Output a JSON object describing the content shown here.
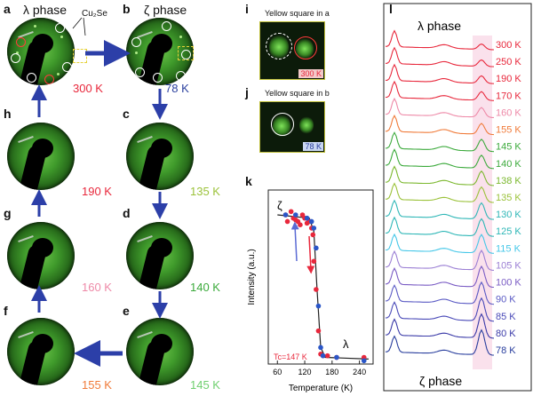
{
  "panels": {
    "a": {
      "letter": "a",
      "title": "λ phase",
      "temp": "300 K",
      "temp_color": "#e8283c",
      "callout": "Cu₂Se"
    },
    "b": {
      "letter": "b",
      "title": "ζ phase",
      "temp": "78 K",
      "temp_color": "#2a3f9e"
    },
    "c": {
      "letter": "c",
      "temp": "135 K",
      "temp_color": "#9bc23a"
    },
    "d": {
      "letter": "d",
      "temp": "140 K",
      "temp_color": "#3caa3c"
    },
    "e": {
      "letter": "e",
      "temp": "145 K",
      "temp_color": "#6fcf6f"
    },
    "f": {
      "letter": "f",
      "temp": "155 K",
      "temp_color": "#f07b3a"
    },
    "g": {
      "letter": "g",
      "temp": "160 K",
      "temp_color": "#ee8aa8"
    },
    "h": {
      "letter": "h",
      "temp": "190 K",
      "temp_color": "#e8283c"
    }
  },
  "zoom": {
    "i": {
      "letter": "i",
      "title": "Yellow square in a",
      "tag": "300 K",
      "tag_color": "#e8283c"
    },
    "j": {
      "letter": "j",
      "title": "Yellow square in b",
      "tag": "78 K",
      "tag_color": "#2a3f9e"
    }
  },
  "panel_k": {
    "letter": "k",
    "zeta_label": "ζ",
    "lambda_label": "λ",
    "tc_label": "Tc=147 K",
    "chart_data": {
      "type": "scatter",
      "xlabel": "Temperature (K)",
      "ylabel": "Intensity (a.u.)",
      "xlim": [
        40,
        270
      ],
      "ylim": [
        0,
        1.05
      ],
      "x_ticks": [
        "60",
        "120",
        "180",
        "240"
      ],
      "x_tick_values": [
        60,
        120,
        180,
        240
      ],
      "series": [
        {
          "color": "#e8283c",
          "points": [
            [
              78,
              0.9
            ],
            [
              82,
              0.86
            ],
            [
              90,
              0.92
            ],
            [
              95,
              0.88
            ],
            [
              100,
              0.87
            ],
            [
              105,
              0.86
            ],
            [
              110,
              0.84
            ],
            [
              115,
              0.9
            ],
            [
              120,
              0.88
            ],
            [
              125,
              0.85
            ],
            [
              130,
              0.86
            ],
            [
              135,
              0.82
            ],
            [
              138,
              0.78
            ],
            [
              140,
              0.62
            ],
            [
              145,
              0.45
            ],
            [
              150,
              0.2
            ],
            [
              155,
              0.06
            ],
            [
              160,
              0.05
            ],
            [
              170,
              0.05
            ],
            [
              190,
              0.04
            ],
            [
              250,
              0.04
            ]
          ]
        },
        {
          "color": "#2a56c8",
          "points": [
            [
              78,
              0.9
            ],
            [
              100,
              0.9
            ],
            [
              125,
              0.88
            ],
            [
              135,
              0.86
            ],
            [
              140,
              0.82
            ],
            [
              145,
              0.7
            ],
            [
              150,
              0.35
            ],
            [
              155,
              0.1
            ],
            [
              160,
              0.05
            ],
            [
              190,
              0.04
            ],
            [
              250,
              0.02
            ]
          ]
        }
      ],
      "fit": [
        [
          60,
          0.9
        ],
        [
          130,
          0.88
        ],
        [
          140,
          0.8
        ],
        [
          147,
          0.45
        ],
        [
          155,
          0.1
        ],
        [
          165,
          0.04
        ],
        [
          260,
          0.03
        ]
      ]
    }
  },
  "panel_l": {
    "letter": "l",
    "top_label": "λ phase",
    "bottom_label": "ζ phase",
    "chart_data": {
      "type": "line",
      "series": [
        {
          "name": "300 K",
          "color": "#e8283c"
        },
        {
          "name": "250 K",
          "color": "#e8283c"
        },
        {
          "name": "190 K",
          "color": "#e8283c"
        },
        {
          "name": "170 K",
          "color": "#e8283c"
        },
        {
          "name": "160 K",
          "color": "#ee8aa8"
        },
        {
          "name": "155 K",
          "color": "#f07b3a"
        },
        {
          "name": "145 K",
          "color": "#3caa3c"
        },
        {
          "name": "140 K",
          "color": "#3caa3c"
        },
        {
          "name": "138 K",
          "color": "#7cb82f"
        },
        {
          "name": "135 K",
          "color": "#9bc23a"
        },
        {
          "name": "130 K",
          "color": "#2fb7b7"
        },
        {
          "name": "125 K",
          "color": "#2fb7b7"
        },
        {
          "name": "115 K",
          "color": "#45c7e8"
        },
        {
          "name": "105 K",
          "color": "#9b7fd4"
        },
        {
          "name": "100 K",
          "color": "#7a5cc4"
        },
        {
          "name": "90 K",
          "color": "#5a5ac4"
        },
        {
          "name": "85 K",
          "color": "#4a4ab8"
        },
        {
          "name": "80 K",
          "color": "#3a3aa8"
        },
        {
          "name": "78 K",
          "color": "#2a3f9e"
        }
      ]
    }
  }
}
